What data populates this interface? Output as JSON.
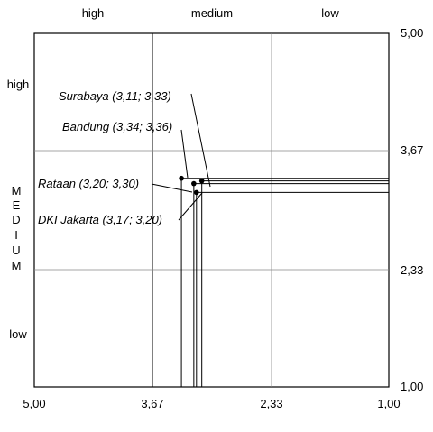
{
  "chart_data": {
    "type": "scatter",
    "x_axis": {
      "ticks": [
        "5,00",
        "3,67",
        "2,33",
        "1,00"
      ],
      "xlim": [
        5.0,
        1.0
      ],
      "reversed": true
    },
    "y_axis": {
      "ticks": [
        "1,00",
        "2,33",
        "3,67",
        "5,00"
      ],
      "ylim": [
        1.0,
        5.0
      ]
    },
    "x_levels": [
      "high",
      "medium",
      "low"
    ],
    "y_levels": [
      "high",
      "low"
    ],
    "y_middle_label": [
      "M",
      "E",
      "D",
      "I",
      "U",
      "M"
    ],
    "grid": true,
    "points": [
      {
        "label": "Surabaya (3,11; 3,33)",
        "x": 3.11,
        "y": 3.33
      },
      {
        "label": "Bandung (3,34; 3,36)",
        "x": 3.34,
        "y": 3.36
      },
      {
        "label": "Rataan (3,20; 3,30)",
        "x": 3.2,
        "y": 3.3
      },
      {
        "label": "DKI Jakarta (3,17; 3,20)",
        "x": 3.17,
        "y": 3.2
      }
    ]
  }
}
